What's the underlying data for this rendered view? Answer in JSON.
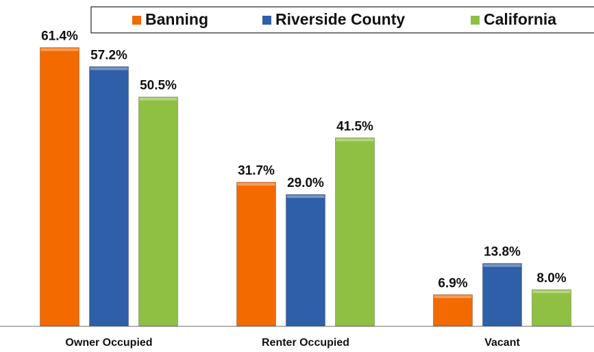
{
  "chart_data": {
    "type": "bar",
    "categories": [
      "Owner Occupied",
      "Renter Occupied",
      "Vacant"
    ],
    "series": [
      {
        "name": "Banning",
        "color": "#f26a00",
        "values": [
          61.4,
          31.7,
          6.9
        ],
        "value_labels": [
          "61.4%",
          "31.7%",
          "6.9%"
        ]
      },
      {
        "name": "Riverside County",
        "color": "#2f5fa8",
        "values": [
          57.2,
          29.0,
          13.8
        ],
        "value_labels": [
          "57.2%",
          "29.0%",
          "13.8%"
        ]
      },
      {
        "name": "California",
        "color": "#8fc043",
        "values": [
          50.5,
          41.5,
          8.0
        ],
        "value_labels": [
          "50.5%",
          "41.5%",
          "8.0%"
        ]
      }
    ],
    "legend": "top"
  }
}
